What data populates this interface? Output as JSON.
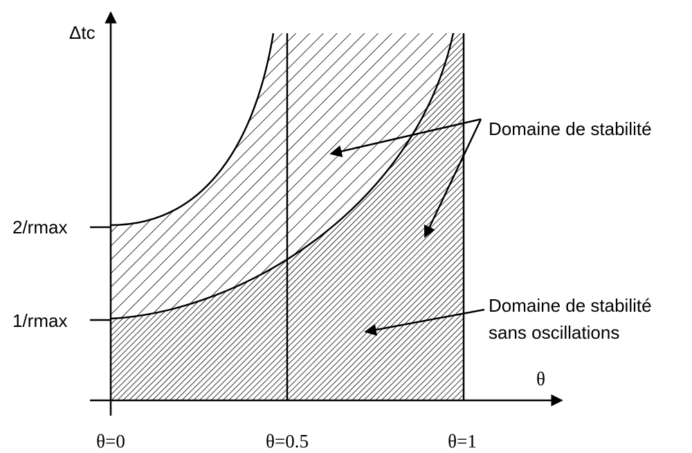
{
  "axes": {
    "y_label": "Δtc",
    "x_label": "θ",
    "y_ticks": [
      "2/rmax",
      "1/rmax"
    ],
    "x_ticks": [
      "θ=0",
      "θ=0.5",
      "θ=1"
    ]
  },
  "annotations": {
    "stability": "Domaine de stabilité",
    "no_oscillation": [
      "Domaine de stabilité",
      "sans oscillations"
    ]
  }
}
